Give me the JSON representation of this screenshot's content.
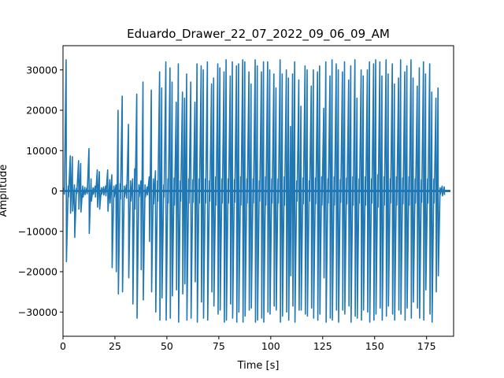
{
  "chart_data": {
    "type": "line",
    "title": "Eduardo_Drawer_22_07_2022_09_06_09_AM",
    "xlabel": "Time [s]",
    "ylabel": "Amplitude",
    "xlim": [
      0,
      188
    ],
    "ylim": [
      -36000,
      36000
    ],
    "xticks": [
      0,
      25,
      50,
      75,
      100,
      125,
      150,
      175
    ],
    "yticks": [
      -30000,
      -20000,
      -10000,
      0,
      10000,
      20000,
      30000
    ],
    "grid": false,
    "series_color": "#1f77b4",
    "series": [
      {
        "name": "",
        "x": [
          0.5,
          1.5,
          2.5,
          3.5,
          4.5,
          5.5,
          6.5,
          7.5,
          8.5,
          9.5,
          10.5,
          11.5,
          12.5,
          13.5,
          14.5,
          15.5,
          16.5,
          17.5,
          18.5,
          19.5,
          20.5,
          21.5,
          22.5,
          23.5,
          24.5,
          25.5,
          26.5,
          27.5,
          28.5,
          29.5,
          30.5,
          31.5,
          32.5,
          33.5,
          34.5,
          35.5,
          36.5,
          37.5,
          38.5,
          39.5,
          40.5,
          41.5,
          42.5,
          43.5,
          44.5,
          45.5,
          46.5,
          47.5,
          48.5,
          49.5,
          50.5,
          51.5,
          52.5,
          53.5,
          54.5,
          55.5,
          56.5,
          57.5,
          58.5,
          59.5,
          60.5,
          61.5,
          62.5,
          63.5,
          64.5,
          65.5,
          66.5,
          67.5,
          68.5,
          69.5,
          70.5,
          71.5,
          72.5,
          73.5,
          74.5,
          75.5,
          76.5,
          77.5,
          78.5,
          79.5,
          80.5,
          81.5,
          82.5,
          83.5,
          84.5,
          85.5,
          86.5,
          87.5,
          88.5,
          89.5,
          90.5,
          91.5,
          92.5,
          93.5,
          94.5,
          95.5,
          96.5,
          97.5,
          98.5,
          99.5,
          100.5,
          101.5,
          102.5,
          103.5,
          104.5,
          105.5,
          106.5,
          107.5,
          108.5,
          109.5,
          110.5,
          111.5,
          112.5,
          113.5,
          114.5,
          115.5,
          116.5,
          117.5,
          118.5,
          119.5,
          120.5,
          121.5,
          122.5,
          123.5,
          124.5,
          125.5,
          126.5,
          127.5,
          128.5,
          129.5,
          130.5,
          131.5,
          132.5,
          133.5,
          134.5,
          135.5,
          136.5,
          137.5,
          138.5,
          139.5,
          140.5,
          141.5,
          142.5,
          143.5,
          144.5,
          145.5,
          146.5,
          147.5,
          148.5,
          149.5,
          150.5,
          151.5,
          152.5,
          153.5,
          154.5,
          155.5,
          156.5,
          157.5,
          158.5,
          159.5,
          160.5,
          161.5,
          162.5,
          163.5,
          164.5,
          165.5,
          166.5,
          167.5,
          168.5,
          169.5,
          170.5,
          171.5,
          172.5,
          173.5,
          174.5,
          175.5,
          176.5,
          177.5,
          178.5,
          179.5,
          180.5,
          181.5,
          182.5,
          183.5,
          184.5,
          185.5,
          186.5
        ],
        "ymax": [
          800,
          32500,
          1200,
          8700,
          8500,
          1500,
          700,
          7500,
          6800,
          1200,
          900,
          800,
          10500,
          3000,
          800,
          1200,
          5200,
          4800,
          800,
          1000,
          1200,
          5200,
          2800,
          4000,
          1200,
          1500,
          20000,
          1800,
          23500,
          1200,
          1500,
          16500,
          2500,
          3000,
          5500,
          24000,
          1500,
          2500,
          27000,
          1500,
          1000,
          3500,
          25000,
          3000,
          5000,
          2500,
          29500,
          25500,
          1500,
          32000,
          3000,
          30500,
          27000,
          3200,
          22000,
          31500,
          2500,
          24500,
          23000,
          29000,
          3000,
          27000,
          2800,
          22000,
          31500,
          3000,
          31000,
          30000,
          3000,
          32000,
          2500,
          26500,
          28000,
          3500,
          31500,
          30500,
          3000,
          29500,
          32500,
          3000,
          28500,
          32000,
          2800,
          31000,
          31500,
          3500,
          32500,
          32000,
          3000,
          29500,
          26500,
          3000,
          32500,
          31000,
          2500,
          29500,
          32000,
          3500,
          32000,
          30000,
          3000,
          29000,
          25500,
          3000,
          32500,
          29000,
          3500,
          30000,
          28000,
          16000,
          29000,
          32000,
          2500,
          27500,
          21000,
          3200,
          31000,
          30000,
          2500,
          26000,
          30000,
          3200,
          29500,
          31000,
          3500,
          20500,
          32000,
          3000,
          28500,
          32500,
          3500,
          31500,
          30000,
          2800,
          29500,
          32000,
          3200,
          27500,
          31000,
          3500,
          32500,
          23000,
          3000,
          30000,
          28500,
          3500,
          30000,
          32000,
          3000,
          31500,
          32500,
          4000,
          32000,
          28500,
          3500,
          32500,
          29000,
          3000,
          31500,
          26500,
          3500,
          28000,
          32500,
          3200,
          29500,
          31000,
          3500,
          32500,
          28000,
          3000,
          26000,
          30500,
          2800,
          32000,
          29000,
          3000,
          31500,
          24500,
          3000,
          23000,
          25500,
          800,
          1200,
          1000
        ],
        "ymin": [
          -800,
          -17500,
          -1500,
          -5500,
          -5000,
          -11500,
          -600,
          -4500,
          -5200,
          -1500,
          -900,
          -700,
          -10500,
          -2500,
          -800,
          -1500,
          -4000,
          -4500,
          -800,
          -1000,
          -1200,
          -5000,
          -3000,
          -19000,
          -1500,
          -20000,
          -25500,
          -2000,
          -25000,
          -1500,
          -1800,
          -21500,
          -2500,
          -28000,
          -4500,
          -31500,
          -1500,
          -19500,
          -27000,
          -1500,
          -1000,
          -12500,
          -25000,
          -3200,
          -30000,
          -2500,
          -32000,
          -26500,
          -1500,
          -32000,
          -3000,
          -31500,
          -26000,
          -3500,
          -24500,
          -32500,
          -2500,
          -25500,
          -23000,
          -32000,
          -3000,
          -31500,
          -2800,
          -22500,
          -32500,
          -3000,
          -27500,
          -31500,
          -3000,
          -32000,
          -2500,
          -25000,
          -28500,
          -3500,
          -30500,
          -29500,
          -3000,
          -32500,
          -32000,
          -3000,
          -28000,
          -31500,
          -2800,
          -32500,
          -30000,
          -3500,
          -32500,
          -31000,
          -3000,
          -29500,
          -29000,
          -3000,
          -32500,
          -32000,
          -2500,
          -31500,
          -32500,
          -3500,
          -30000,
          -30500,
          -3000,
          -28500,
          -29500,
          -3000,
          -32500,
          -31000,
          -3500,
          -30000,
          -32000,
          -21000,
          -28500,
          -32500,
          -2500,
          -29500,
          -29500,
          -3200,
          -30500,
          -31000,
          -2500,
          -29000,
          -31500,
          -3200,
          -32000,
          -30500,
          -3500,
          -21500,
          -32500,
          -3000,
          -31500,
          -32000,
          -3500,
          -29500,
          -32500,
          -2800,
          -29500,
          -30500,
          -3200,
          -28500,
          -32500,
          -3500,
          -31000,
          -31500,
          -3000,
          -32000,
          -29500,
          -3500,
          -30000,
          -32500,
          -3000,
          -32000,
          -30500,
          -4000,
          -29000,
          -32000,
          -3500,
          -31000,
          -28500,
          -3000,
          -30500,
          -32000,
          -3500,
          -29500,
          -30500,
          -3200,
          -32000,
          -29000,
          -3500,
          -31500,
          -27500,
          -3000,
          -29000,
          -31500,
          -2800,
          -32000,
          -24500,
          -3000,
          -30500,
          -32500,
          -3000,
          -25000,
          -21000,
          -800,
          -1200,
          -1000
        ]
      }
    ]
  }
}
